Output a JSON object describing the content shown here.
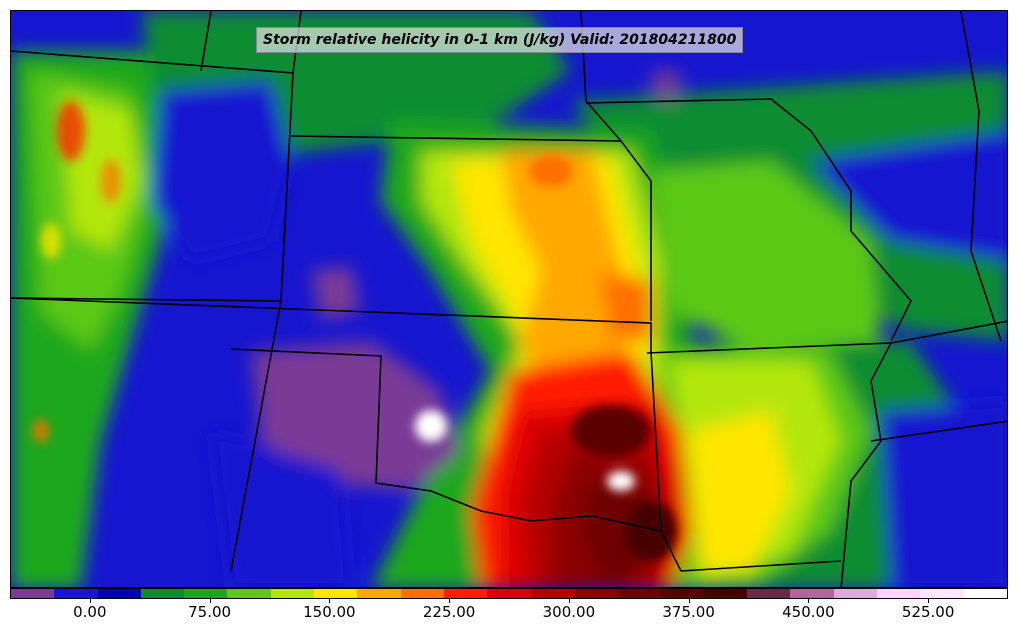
{
  "map": {
    "title": "Storm relative helicity in 0-1 km (J/kg) Valid: 201804211800",
    "variable": "Storm relative helicity",
    "units": "J/kg",
    "valid_time": "201804211800"
  },
  "colorbar": {
    "colors": [
      "#7a3b96",
      "#1c14d4",
      "#0000b4",
      "#0a8c32",
      "#1aa81a",
      "#5cc818",
      "#b4e60e",
      "#ffe600",
      "#ffa800",
      "#ff6e00",
      "#ff1e00",
      "#dc0000",
      "#b40000",
      "#8c0000",
      "#6e0000",
      "#5a0000",
      "#460000",
      "#642d46",
      "#b4649c",
      "#dcaadc",
      "#ffd2ff",
      "#ffe6ff",
      "#ffffff"
    ],
    "min": -50,
    "max": 575,
    "ticks": [
      "0.00",
      "75.00",
      "150.00",
      "225.00",
      "300.00",
      "375.00",
      "450.00",
      "525.00"
    ]
  }
}
